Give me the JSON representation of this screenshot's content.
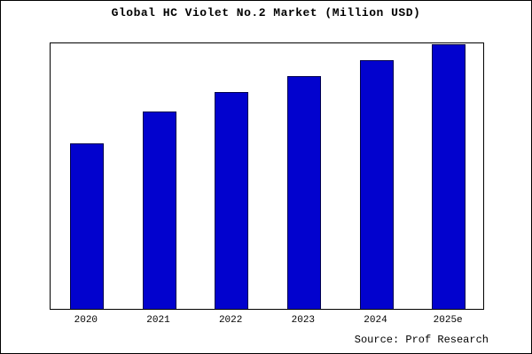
{
  "chart_data": {
    "type": "bar",
    "title": "Global HC Violet No.2 Market (Million USD)",
    "categories": [
      "2020",
      "2021",
      "2022",
      "2023",
      "2024",
      "2025e"
    ],
    "values": [
      62,
      74,
      81,
      87,
      93,
      99
    ],
    "xlabel": "",
    "ylabel": "",
    "ylim": [
      0,
      100
    ],
    "grid": false,
    "legend": "none",
    "bar_fill_color": "#0202ce",
    "bar_edge_color": "#00004d",
    "plot_background": "#ffffff"
  },
  "source": {
    "text": "Source: Prof Research"
  }
}
